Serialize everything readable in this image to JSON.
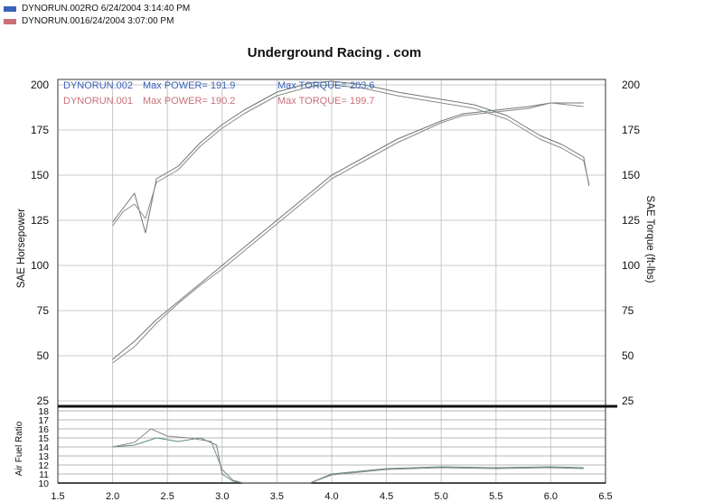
{
  "header": {
    "runs": [
      {
        "label": "DYNORUN.002RO  6/24/2004 3:14:40 PM",
        "color": "#3a62b8"
      },
      {
        "label": "DYNORUN.0016/24/2004 3:07:00 PM",
        "color": "#c9707a"
      }
    ]
  },
  "chart_data": {
    "type": "line",
    "title": "Underground Racing . com",
    "xlim": [
      1.5,
      6.5
    ],
    "x_ticks": [
      "1.5",
      "2.0",
      "2.5",
      "3.0",
      "3.5",
      "4.0",
      "4.5",
      "5.0",
      "5.5",
      "6.0",
      "6.5"
    ],
    "grid": true,
    "annotations": [
      {
        "run": "DYNORUN.002",
        "power": "Max POWER= 191.9",
        "torque": "Max TORQUE= 203.6",
        "color": "#3a62b8"
      },
      {
        "run": "DYNORUN.001",
        "power": "Max POWER= 190.2",
        "torque": "Max TORQUE= 199.7",
        "color": "#c9707a"
      }
    ],
    "main_panel": {
      "ylabel_left": "SAE Horsepower",
      "ylabel_right": "SAE Torque (ft-lbs)",
      "ylim": [
        22,
        203
      ],
      "y_ticks": [
        25,
        50,
        75,
        100,
        125,
        150,
        175,
        200
      ],
      "series": [
        {
          "name": "DYNORUN.002",
          "measure": "power",
          "x": [
            2.0,
            2.2,
            2.4,
            2.6,
            2.8,
            3.0,
            3.2,
            3.5,
            3.8,
            4.0,
            4.3,
            4.6,
            5.0,
            5.2,
            5.5,
            5.8,
            6.0,
            6.3
          ],
          "y": [
            48,
            58,
            70,
            80,
            90,
            100,
            110,
            125,
            140,
            150,
            160,
            170,
            180,
            184,
            186,
            188,
            190,
            190
          ]
        },
        {
          "name": "DYNORUN.001",
          "measure": "power",
          "x": [
            2.0,
            2.2,
            2.4,
            2.6,
            2.8,
            3.0,
            3.2,
            3.5,
            3.8,
            4.0,
            4.3,
            4.6,
            5.0,
            5.2,
            5.5,
            5.8,
            6.0,
            6.3
          ],
          "y": [
            46,
            55,
            68,
            79,
            89,
            98,
            108,
            123,
            138,
            148,
            158,
            168,
            179,
            183,
            185,
            187,
            190,
            188
          ]
        },
        {
          "name": "DYNORUN.002",
          "measure": "torque",
          "x": [
            2.0,
            2.1,
            2.2,
            2.3,
            2.4,
            2.6,
            2.8,
            3.0,
            3.2,
            3.5,
            3.8,
            4.0,
            4.3,
            4.6,
            5.0,
            5.3,
            5.6,
            5.9,
            6.1,
            6.3,
            6.35
          ],
          "y": [
            124,
            132,
            140,
            118,
            148,
            155,
            168,
            178,
            186,
            196,
            201,
            202,
            200,
            196,
            192,
            189,
            183,
            172,
            167,
            160,
            144
          ]
        },
        {
          "name": "DYNORUN.001",
          "measure": "torque",
          "x": [
            2.0,
            2.1,
            2.2,
            2.3,
            2.4,
            2.6,
            2.8,
            3.0,
            3.2,
            3.5,
            3.8,
            4.0,
            4.3,
            4.6,
            5.0,
            5.3,
            5.6,
            5.9,
            6.1,
            6.3,
            6.35
          ],
          "y": [
            122,
            130,
            134,
            126,
            146,
            153,
            166,
            176,
            184,
            194,
            199,
            200,
            198,
            194,
            190,
            187,
            181,
            170,
            165,
            158,
            145
          ]
        }
      ]
    },
    "afr_panel": {
      "ylabel": "Air Fuel Ratio",
      "ylim": [
        10,
        18
      ],
      "y_ticks": [
        10,
        11,
        12,
        13,
        14,
        15,
        16,
        17,
        18
      ],
      "series": [
        {
          "name": "DYNORUN.002",
          "x": [
            2.0,
            2.2,
            2.4,
            2.6,
            2.8,
            2.95,
            3.0,
            3.1,
            3.2,
            3.8,
            4.0,
            4.5,
            5.0,
            5.5,
            6.0,
            6.3
          ],
          "y": [
            14.0,
            14.2,
            15.0,
            14.6,
            15.0,
            14.2,
            11.0,
            10.2,
            10.0,
            10.0,
            11.0,
            11.6,
            11.8,
            11.7,
            11.8,
            11.7
          ]
        },
        {
          "name": "DYNORUN.001",
          "x": [
            2.0,
            2.2,
            2.35,
            2.5,
            2.7,
            2.9,
            3.0,
            3.1,
            3.2,
            3.8,
            4.0,
            4.5,
            5.0,
            5.5,
            6.0,
            6.3
          ],
          "y": [
            14.0,
            14.5,
            16.0,
            15.2,
            15.0,
            14.6,
            11.5,
            10.3,
            10.0,
            10.0,
            10.9,
            11.5,
            11.7,
            11.6,
            11.7,
            11.6
          ]
        }
      ]
    }
  }
}
